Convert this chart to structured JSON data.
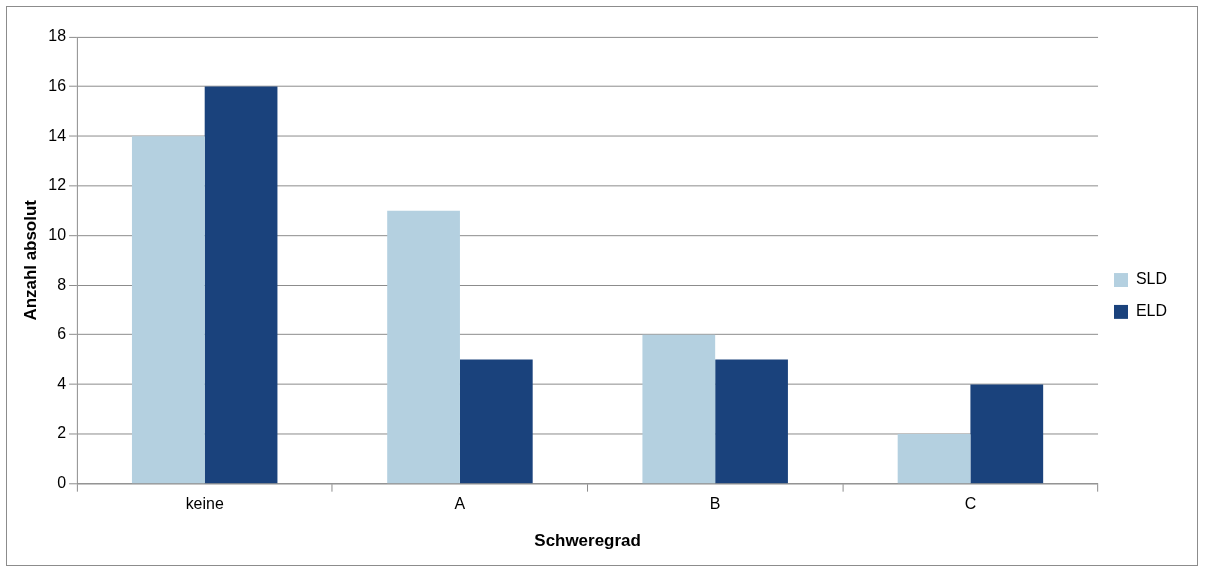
{
  "chart_data": {
    "type": "bar",
    "xlabel": "Schweregrad",
    "ylabel": "Anzahl absolut",
    "categories": [
      "keine",
      "A",
      "B",
      "C"
    ],
    "series": [
      {
        "name": "SLD",
        "color": "#b4d0e0",
        "values": [
          14,
          11,
          6,
          2
        ]
      },
      {
        "name": "ELD",
        "color": "#1a427c",
        "values": [
          16,
          5,
          5,
          4
        ]
      }
    ],
    "ylim": [
      0,
      18
    ],
    "yticks": [
      0,
      2,
      4,
      6,
      8,
      10,
      12,
      14,
      16,
      18
    ],
    "grid": "y",
    "legend": "right"
  }
}
